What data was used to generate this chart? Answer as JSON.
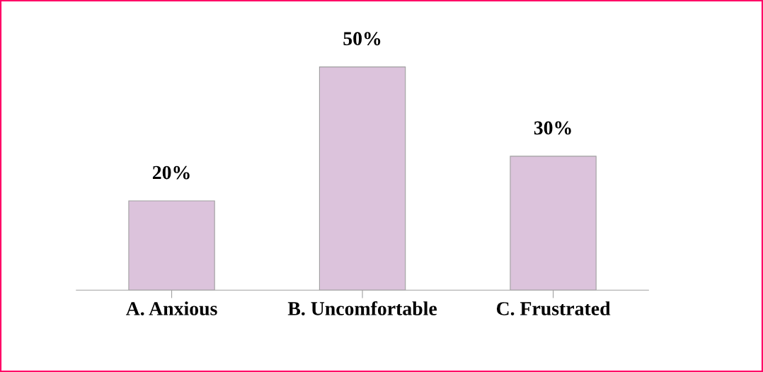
{
  "chart_data": {
    "type": "bar",
    "categories": [
      "A. Anxious",
      "B. Uncomfortable",
      "C. Frustrated"
    ],
    "values": [
      20,
      50,
      30
    ],
    "value_labels": [
      "20%",
      "50%",
      "30%"
    ],
    "color": "#dcc3dc",
    "grid": false,
    "legend": false
  }
}
